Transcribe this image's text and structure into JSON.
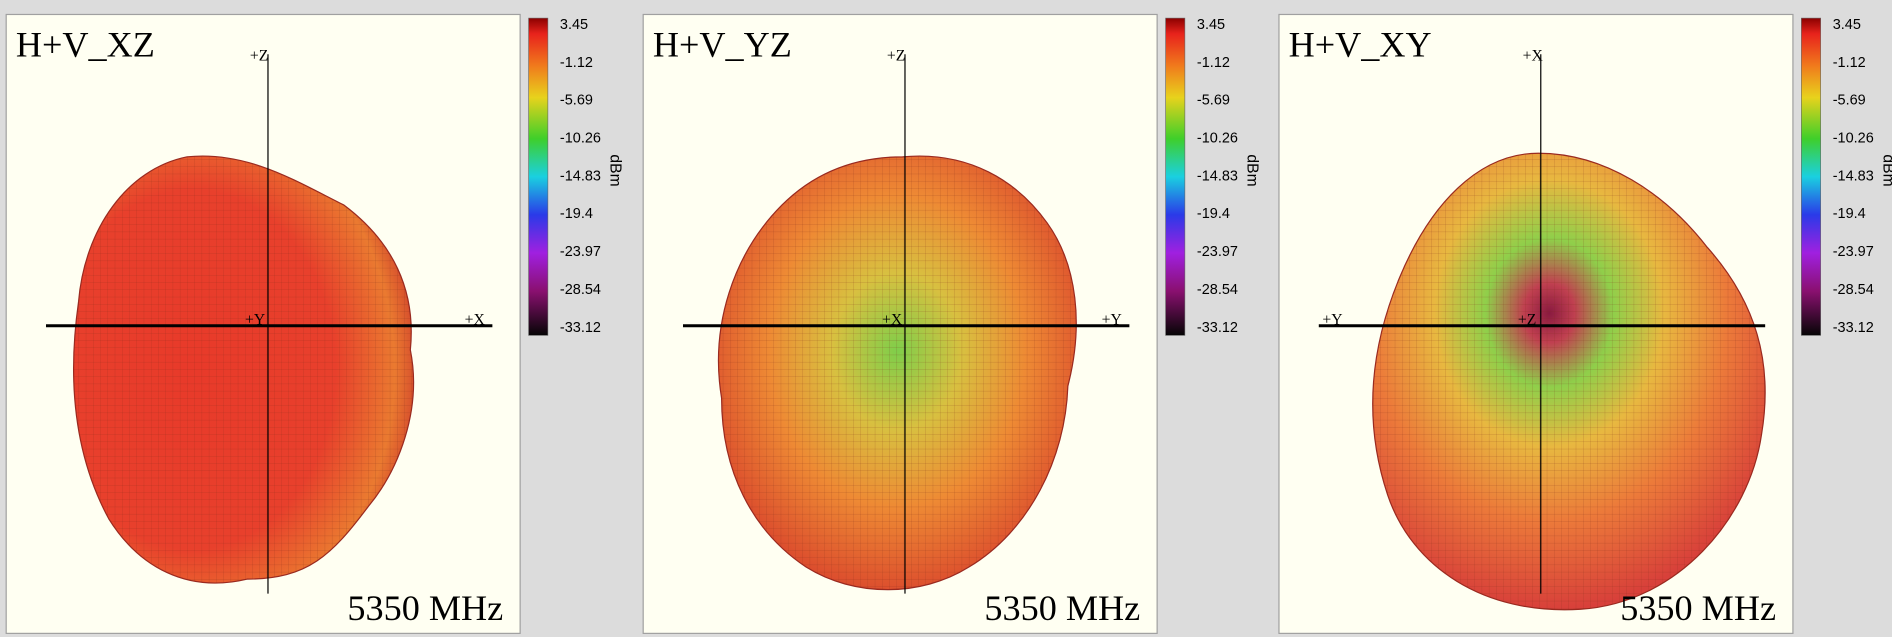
{
  "panels": [
    {
      "title": "H+V_XZ",
      "axes": {
        "top": "+Z",
        "center": "+Y",
        "horizontal": "+X"
      },
      "frequency": "5350 MHz",
      "colorbar": {
        "ticks": [
          3.45,
          -1.12,
          -5.69,
          -10.26,
          -14.83,
          -19.4,
          -23.97,
          -28.54,
          -33.12
        ],
        "unit": "dBm"
      }
    },
    {
      "title": "H+V_YZ",
      "axes": {
        "top": "+Z",
        "center": "+X",
        "horizontal": "+Y"
      },
      "frequency": "5350 MHz",
      "colorbar": {
        "ticks": [
          3.45,
          -1.12,
          -5.69,
          -10.26,
          -14.83,
          -19.4,
          -23.97,
          -28.54,
          -33.12
        ],
        "unit": "dBm"
      }
    },
    {
      "title": "H+V_XY",
      "axes": {
        "top": "+X",
        "center": "+Z",
        "horizontal": "+Y"
      },
      "frequency": "5350 MHz",
      "colorbar": {
        "ticks": [
          3.45,
          -1.12,
          -5.69,
          -10.26,
          -14.83,
          -19.4,
          -23.97,
          -28.54,
          -33.12
        ],
        "unit": "dBm"
      }
    }
  ]
}
